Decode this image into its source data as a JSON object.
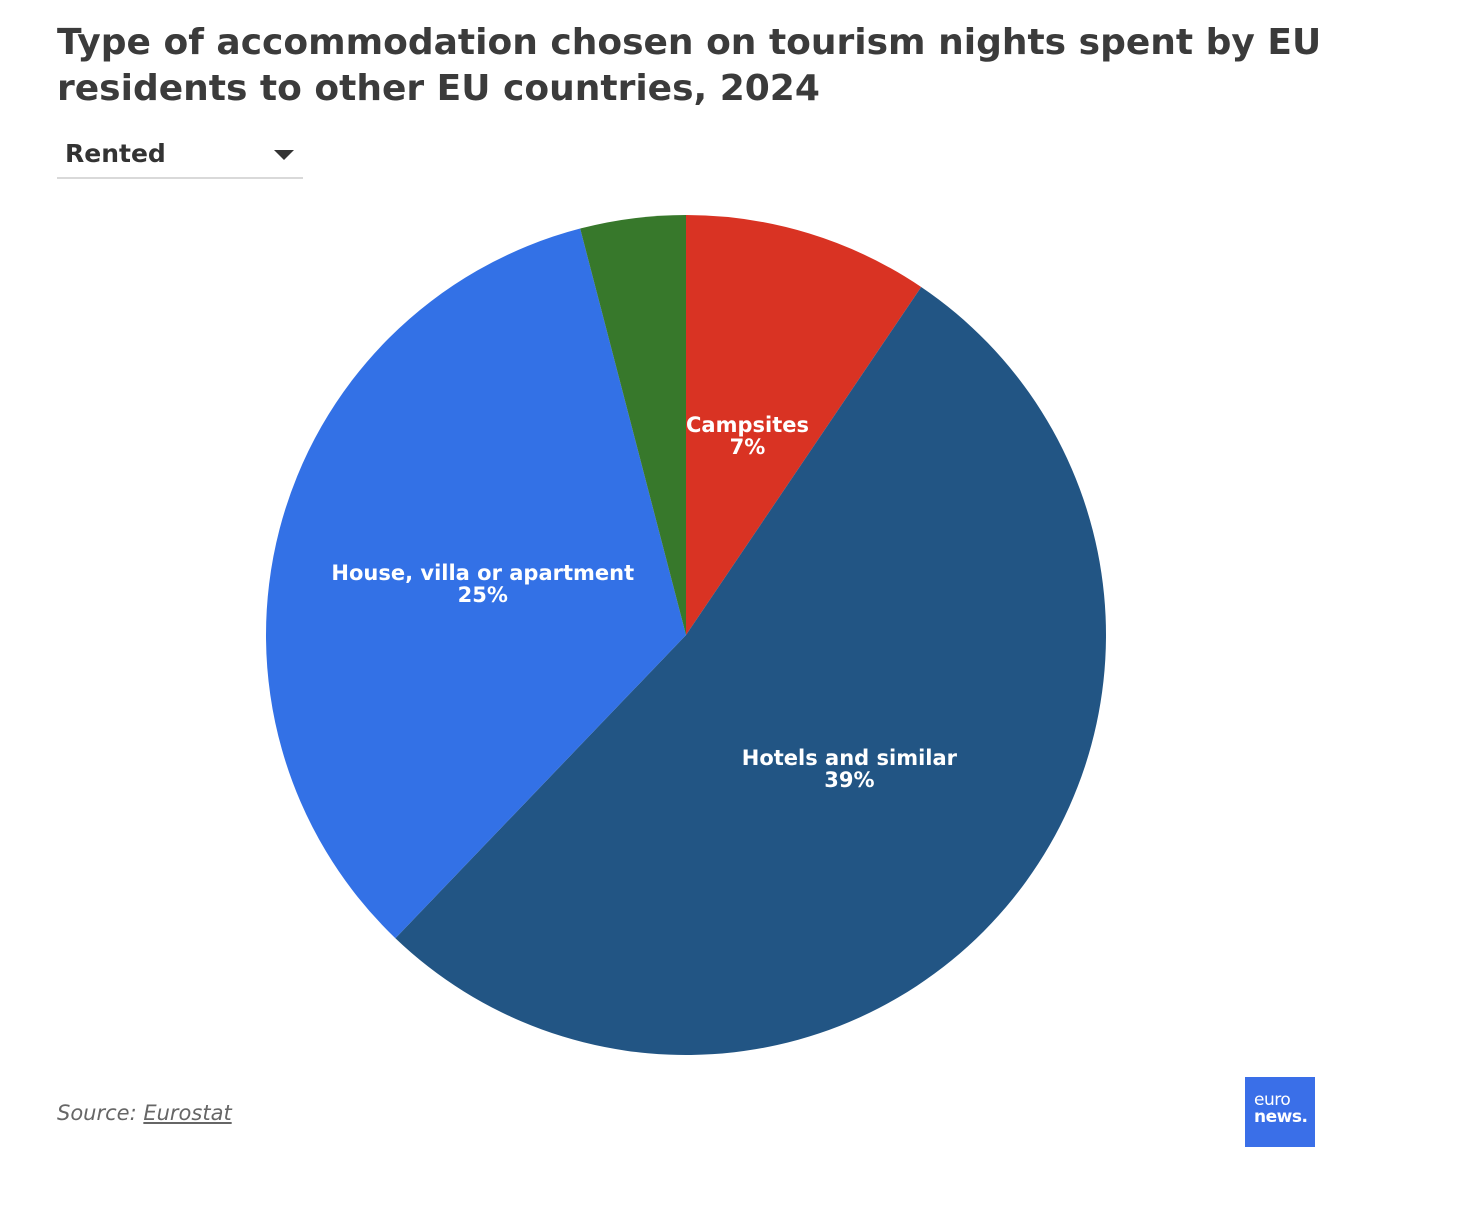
{
  "title": "Type of accommodation chosen on tourism nights spent by EU residents to other EU countries, 2024",
  "selector": {
    "selected": "Rented"
  },
  "chart_data": {
    "type": "pie",
    "title": "Type of accommodation chosen on tourism nights spent by EU residents to other EU countries, 2024",
    "slices": [
      {
        "name": "Campsites",
        "value": 7,
        "label_text": "7%",
        "color": "#d93323",
        "show_label": true
      },
      {
        "name": "Hotels and similar",
        "value": 39,
        "label_text": "39%",
        "color": "#225584",
        "show_label": true
      },
      {
        "name": "House, villa or apartment",
        "value": 25,
        "label_text": "25%",
        "color": "#3371e6",
        "show_label": true
      },
      {
        "name": "",
        "value": 3,
        "label_text": "",
        "color": "#37782b",
        "show_label": false
      }
    ]
  },
  "source": {
    "prefix": "Source: ",
    "link_text": "Eurostat"
  },
  "logo": {
    "line1": "euro",
    "line2": "news."
  }
}
